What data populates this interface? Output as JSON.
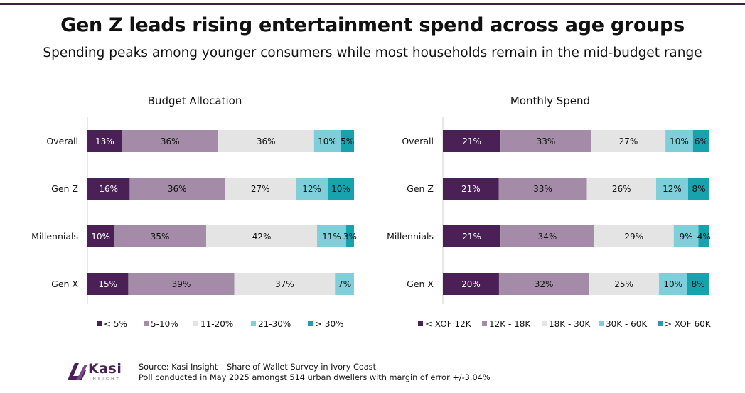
{
  "header": {
    "title": "Gen Z leads rising entertainment spend across age groups",
    "subtitle": "Spending peaks among younger consumers while most households remain in the mid-budget range"
  },
  "colors": [
    "#4a2057",
    "#a48ca8",
    "#e4e4e4",
    "#7ecfd9",
    "#17a3ae"
  ],
  "chart_data": [
    {
      "type": "bar",
      "stacked": true,
      "orientation": "horizontal",
      "title": "Budget Allocation",
      "categories": [
        "Overall",
        "Gen Z",
        "Millennials",
        "Gen X"
      ],
      "series": [
        {
          "name": "< 5%",
          "values": [
            13,
            16,
            10,
            15
          ],
          "labels": [
            "13%",
            "16%",
            "10%",
            "15%"
          ]
        },
        {
          "name": "5-10%",
          "values": [
            36,
            36,
            35,
            39
          ],
          "labels": [
            "36%",
            "36%",
            "35%",
            "39%"
          ]
        },
        {
          "name": "11-20%",
          "values": [
            36,
            27,
            42,
            37
          ],
          "labels": [
            "36%",
            "27%",
            "42%",
            "37%"
          ]
        },
        {
          "name": "21-30%",
          "values": [
            10,
            12,
            11,
            7
          ],
          "labels": [
            "10%",
            "12%",
            "11%",
            "7%"
          ]
        },
        {
          "name": "> 30%",
          "values": [
            5,
            10,
            3,
            0
          ],
          "labels": [
            "5%",
            "10%",
            "3%",
            ""
          ]
        }
      ]
    },
    {
      "type": "bar",
      "stacked": true,
      "orientation": "horizontal",
      "title": "Monthly Spend",
      "categories": [
        "Overall",
        "Gen Z",
        "Millennials",
        "Gen X"
      ],
      "series": [
        {
          "name": "< XOF 12K",
          "values": [
            21,
            21,
            21,
            20
          ],
          "labels": [
            "21%",
            "21%",
            "21%",
            "20%"
          ]
        },
        {
          "name": "12K - 18K",
          "values": [
            33,
            33,
            34,
            32
          ],
          "labels": [
            "33%",
            "33%",
            "34%",
            "32%"
          ]
        },
        {
          "name": "18K - 30K",
          "values": [
            27,
            26,
            29,
            25
          ],
          "labels": [
            "27%",
            "26%",
            "29%",
            "25%"
          ]
        },
        {
          "name": "30K - 60K",
          "values": [
            10,
            12,
            9,
            10
          ],
          "labels": [
            "10%",
            "12%",
            "9%",
            "10%"
          ]
        },
        {
          "name": "> XOF 60K",
          "values": [
            6,
            8,
            4,
            8
          ],
          "labels": [
            "6%",
            "8%",
            "4%",
            "8%"
          ]
        }
      ]
    }
  ],
  "footer": {
    "source_line1": "Source: Kasi Insight – Share of Wallet Survey in Ivory Coast",
    "source_line2": "Poll conducted in May 2025 amongst 514 urban dwellers with margin of error +/-3.04%",
    "logo_name": "Kasi",
    "logo_tagline": "INSIGHT"
  }
}
